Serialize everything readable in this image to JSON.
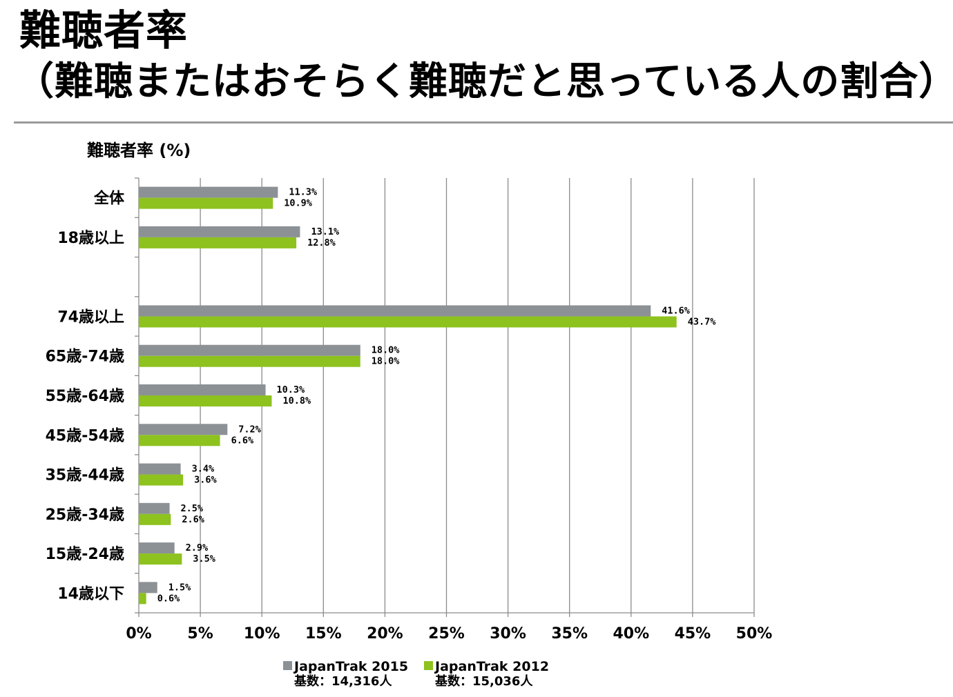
{
  "page": {
    "title_line1": "難聴者率",
    "title_line2": "（難聴またはおそらく難聴だと思っている人の割合）"
  },
  "chart_data": {
    "type": "bar",
    "orientation": "horizontal",
    "ylabel": "難聴者率 (%)",
    "categories": [
      "全体",
      "18歳以上",
      "",
      "74歳以上",
      "65歳-74歳",
      "55歳-64歳",
      "45歳-54歳",
      "35歳-44歳",
      "25歳-34歳",
      "15歳-24歳",
      "14歳以下"
    ],
    "series": [
      {
        "name": "JapanTrak 2015",
        "note": "基数：14,316人",
        "color": "#8c9196",
        "values": [
          11.3,
          13.1,
          null,
          41.6,
          18.0,
          10.3,
          7.2,
          3.4,
          2.5,
          2.9,
          1.5
        ],
        "labels": [
          "11.3%",
          "13.1%",
          "",
          "41.6%",
          "18.0%",
          "10.3%",
          "7.2%",
          "3.4%",
          "2.5%",
          "2.9%",
          "1.5%"
        ]
      },
      {
        "name": "JapanTrak 2012",
        "note": "基数：15,036人",
        "color": "#8dc21f",
        "values": [
          10.9,
          12.8,
          null,
          43.7,
          18.0,
          10.8,
          6.6,
          3.6,
          2.6,
          3.5,
          0.6
        ],
        "labels": [
          "10.9%",
          "12.8%",
          "",
          "43.7%",
          "18.0%",
          "10.8%",
          "6.6%",
          "3.6%",
          "2.6%",
          "3.5%",
          "0.6%"
        ]
      }
    ],
    "xlim": [
      0,
      50
    ],
    "xticks": [
      "0%",
      "5%",
      "10%",
      "15%",
      "20%",
      "25%",
      "30%",
      "35%",
      "40%",
      "45%",
      "50%"
    ],
    "grid": true,
    "legend": "bottom"
  }
}
